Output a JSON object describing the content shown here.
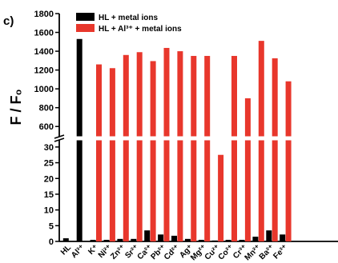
{
  "chart_data": {
    "type": "bar",
    "panel_label": "c)",
    "ylabel": "F / F₀",
    "categories": [
      "HL",
      "Al³⁺",
      "K⁺",
      "Ni²⁺",
      "Zn²⁺",
      "Sr²⁺",
      "Ca²⁺",
      "Pb²⁺",
      "Cd²⁺",
      "Ag⁺",
      "Mg²⁺",
      "Cu²⁺",
      "Co²⁺",
      "Cr³⁺",
      "Mn²⁺",
      "Ba²⁺",
      "Fe³⁺"
    ],
    "series": [
      {
        "name": "HL + metal ions",
        "color": "#000000",
        "values": [
          1,
          1530,
          0.5,
          0.5,
          0.8,
          0.8,
          3.5,
          2.2,
          1.8,
          0.8,
          0.5,
          0.3,
          0.5,
          0.5,
          1.5,
          3.5,
          2.2
        ]
      },
      {
        "name": "HL + Al³⁺ + metal ions",
        "color": "#e8372c",
        "values": [
          null,
          null,
          1260,
          1220,
          1360,
          1390,
          1295,
          1435,
          1400,
          1350,
          1350,
          27.5,
          1350,
          900,
          1510,
          1325,
          1080
        ]
      }
    ],
    "axis_break": {
      "lower_range": [
        0,
        32
      ],
      "upper_range": [
        500,
        1800
      ]
    },
    "lower_ticks": [
      0,
      5,
      10,
      15,
      20,
      25,
      30
    ],
    "upper_ticks": [
      600,
      800,
      1000,
      1200,
      1400,
      1600,
      1800
    ],
    "legend_position": "top-left"
  }
}
